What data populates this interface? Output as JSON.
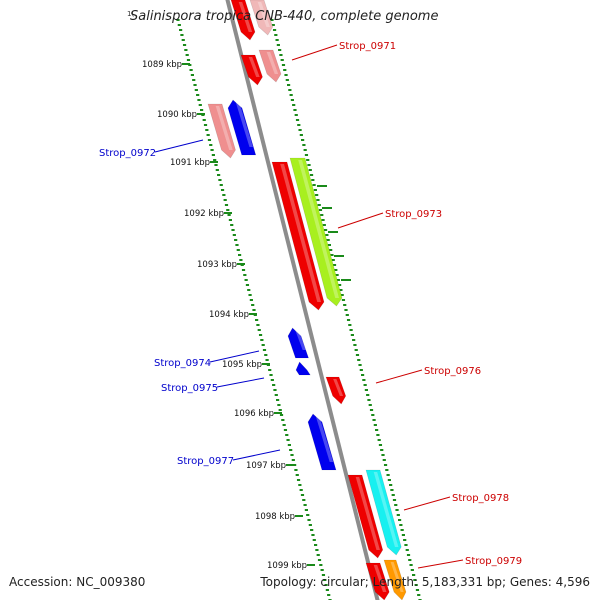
{
  "title": "Salinispora tropica CNB-440, complete genome",
  "title_mark": "1(",
  "footer": {
    "accession": "Accession: NC_009380",
    "summary": "Topology: circular; Length: 5,183,331 bp; Genes: 4,596"
  },
  "kbp_ticks": [
    {
      "label": "1089 kbp"
    },
    {
      "label": "1090 kbp"
    },
    {
      "label": "1091 kbp"
    },
    {
      "label": "1092 kbp"
    },
    {
      "label": "1093 kbp"
    },
    {
      "label": "1094 kbp"
    },
    {
      "label": "1095 kbp"
    },
    {
      "label": "1096 kbp"
    },
    {
      "label": "1097 kbp"
    },
    {
      "label": "1098 kbp"
    },
    {
      "label": "1099 kbp"
    }
  ],
  "gene_labels": [
    {
      "name": "Strop_0971",
      "strand": "forward"
    },
    {
      "name": "Strop_0972",
      "strand": "reverse"
    },
    {
      "name": "Strop_0973",
      "strand": "forward"
    },
    {
      "name": "Strop_0974",
      "strand": "reverse"
    },
    {
      "name": "Strop_0975",
      "strand": "reverse"
    },
    {
      "name": "Strop_0976",
      "strand": "forward"
    },
    {
      "name": "Strop_0977",
      "strand": "reverse"
    },
    {
      "name": "Strop_0978",
      "strand": "forward"
    },
    {
      "name": "Strop_0979",
      "strand": "forward"
    }
  ],
  "colors": {
    "forward_label": "#cc0000",
    "reverse_label": "#0000cc",
    "cds_red": "#ee0000",
    "cds_pink": "#ef8f8f",
    "cds_blue": "#0000ee",
    "cds_lime": "#a8ef1f",
    "cds_cyan": "#18f0f0",
    "cds_orange": "#ff9900",
    "backbone": "#8c8c8c",
    "tick_green": "#1a8a1a"
  }
}
